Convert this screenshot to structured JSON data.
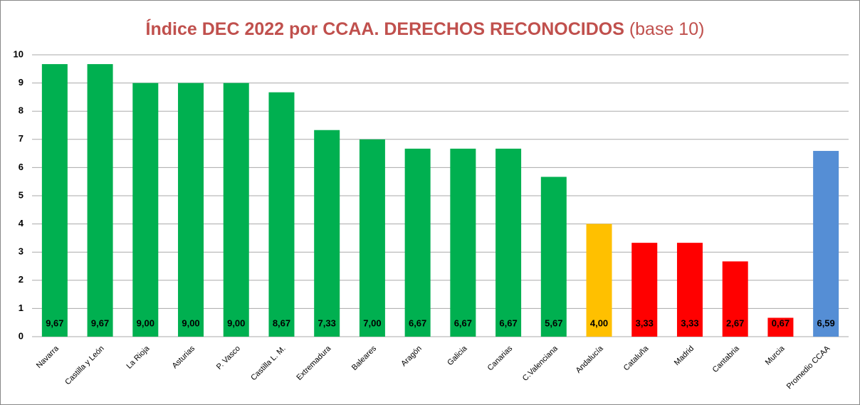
{
  "chart_data": {
    "type": "bar",
    "title": [
      "Índice DEC 2022 por CCAA. DERECHOS RECONOCIDOS",
      "(base 10)"
    ],
    "categories": [
      "Navarra",
      "Castilla y León",
      "La Rioja",
      "Asturias",
      "P. Vasco",
      "Castilla L. M.",
      "Extremadura",
      "Baleares",
      "Aragón",
      "Galicia",
      "Canarias",
      "C.Valenciana",
      "Andalucía",
      "Cataluña",
      "Madrid",
      "Cantabria",
      "Murcia",
      "Promedio CCAA"
    ],
    "values": [
      9.67,
      9.67,
      9.0,
      9.0,
      9.0,
      8.67,
      7.33,
      7.0,
      6.67,
      6.67,
      6.67,
      5.67,
      4.0,
      3.33,
      3.33,
      2.67,
      0.67,
      6.59
    ],
    "value_labels": [
      "9,67",
      "9,67",
      "9,00",
      "9,00",
      "9,00",
      "8,67",
      "7,33",
      "7,00",
      "6,67",
      "6,67",
      "6,67",
      "5,67",
      "4,00",
      "3,33",
      "3,33",
      "2,67",
      "0,67",
      "6,59"
    ],
    "colors": [
      "#00b050",
      "#00b050",
      "#00b050",
      "#00b050",
      "#00b050",
      "#00b050",
      "#00b050",
      "#00b050",
      "#00b050",
      "#00b050",
      "#00b050",
      "#00b050",
      "#ffc000",
      "#ff0000",
      "#ff0000",
      "#ff0000",
      "#ff0000",
      "#558ed5"
    ],
    "ylim": [
      0,
      10
    ],
    "yticks": [
      0,
      1,
      2,
      3,
      4,
      5,
      6,
      7,
      8,
      9,
      10
    ],
    "grid": true
  }
}
